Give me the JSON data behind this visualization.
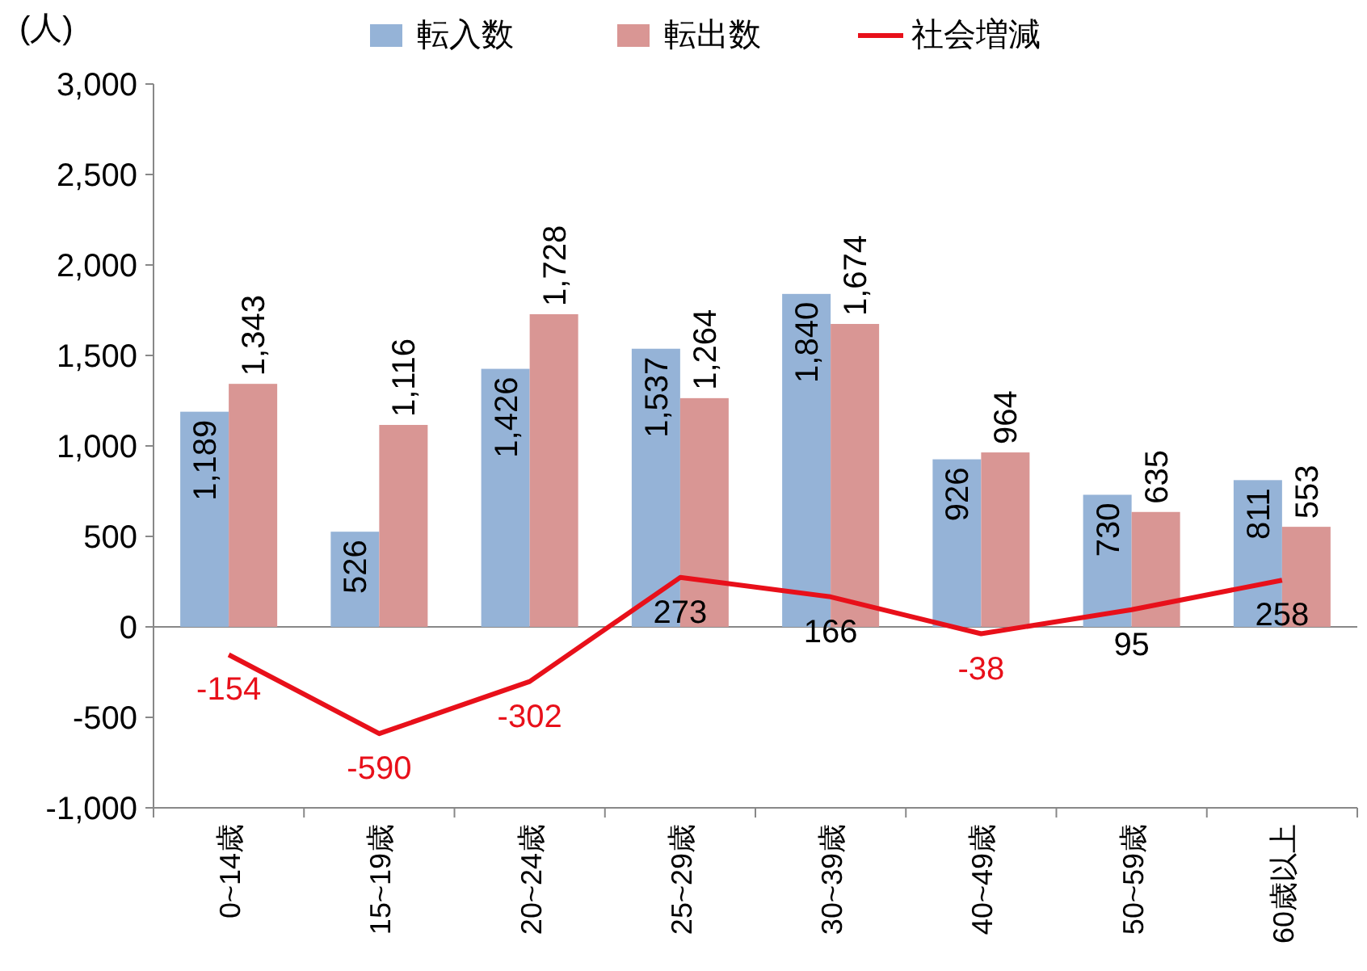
{
  "chart_data": {
    "type": "bar",
    "ylabel": "(人)",
    "categories": [
      "0~14歳",
      "15~19歳",
      "20~24歳",
      "25~29歳",
      "30~39歳",
      "40~49歳",
      "50~59歳",
      "60歳以上"
    ],
    "series": [
      {
        "name": "転入数",
        "color": "#95b3d7",
        "values": [
          1189,
          526,
          1426,
          1537,
          1840,
          926,
          730,
          811
        ],
        "value_labels": [
          "1,189",
          "526",
          "1,426",
          "1,537",
          "1,840",
          "926",
          "730",
          "811"
        ]
      },
      {
        "name": "転出数",
        "color": "#d99694",
        "values": [
          1343,
          1116,
          1728,
          1264,
          1674,
          964,
          635,
          553
        ],
        "value_labels": [
          "1,343",
          "1,116",
          "1,728",
          "1,264",
          "1,674",
          "964",
          "635",
          "553"
        ]
      },
      {
        "name": "社会増減",
        "type": "line",
        "color": "#e8101a",
        "values": [
          -154,
          -590,
          -302,
          273,
          166,
          -38,
          95,
          258
        ],
        "value_labels": [
          "-154",
          "-590",
          "-302",
          "273",
          "166",
          "-38",
          "95",
          "258"
        ]
      }
    ],
    "ylim": [
      -1000,
      3000
    ],
    "yticks": [
      {
        "value": -1000,
        "label": "-1,000"
      },
      {
        "value": -500,
        "label": "-500"
      },
      {
        "value": 0,
        "label": "0"
      },
      {
        "value": 500,
        "label": "500"
      },
      {
        "value": 1000,
        "label": "1,000"
      },
      {
        "value": 1500,
        "label": "1,500"
      },
      {
        "value": 2000,
        "label": "2,000"
      },
      {
        "value": 2500,
        "label": "2,500"
      },
      {
        "value": 3000,
        "label": "3,000"
      }
    ],
    "legend": "top",
    "marker": "none",
    "line_style": "solid"
  }
}
